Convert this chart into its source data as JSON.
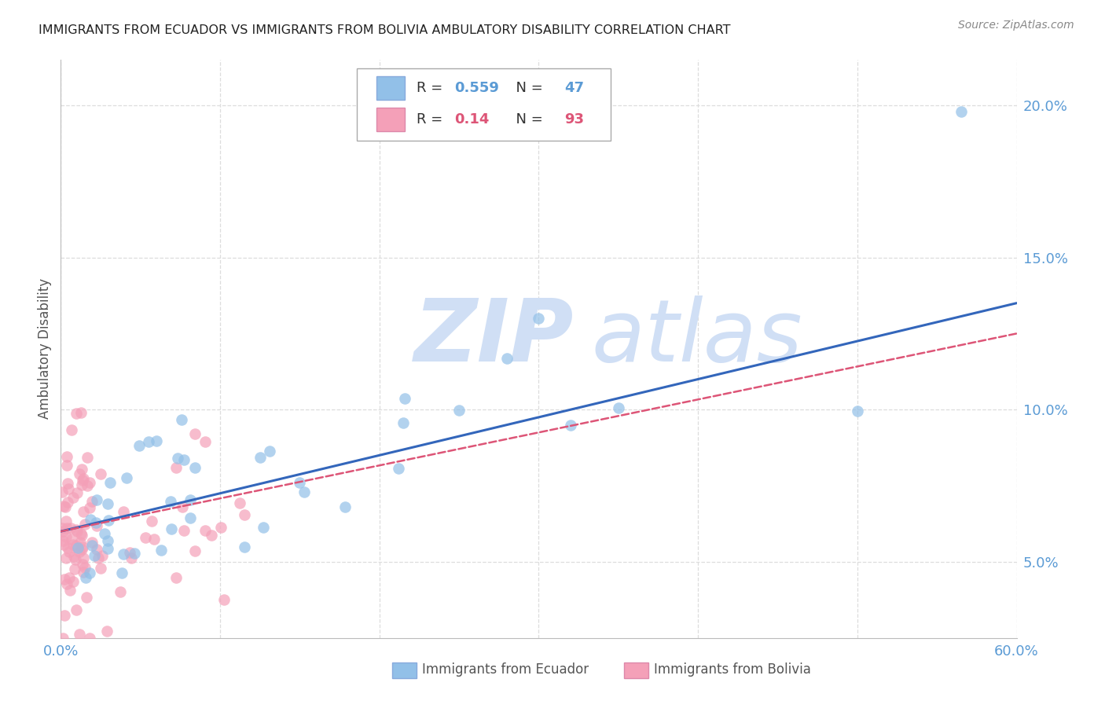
{
  "title": "IMMIGRANTS FROM ECUADOR VS IMMIGRANTS FROM BOLIVIA AMBULATORY DISABILITY CORRELATION CHART",
  "source": "Source: ZipAtlas.com",
  "ylabel": "Ambulatory Disability",
  "xlim": [
    0.0,
    0.6
  ],
  "ylim": [
    0.025,
    0.215
  ],
  "yticks": [
    0.05,
    0.1,
    0.15,
    0.2
  ],
  "xticks": [
    0.0,
    0.1,
    0.2,
    0.3,
    0.4,
    0.5,
    0.6
  ],
  "ecuador_R": 0.559,
  "ecuador_N": 47,
  "bolivia_R": 0.14,
  "bolivia_N": 93,
  "ecuador_color": "#92c0e8",
  "bolivia_color": "#f4a0b8",
  "ecuador_line_color": "#3366bb",
  "bolivia_line_color": "#dd5577",
  "background_color": "#ffffff",
  "grid_color": "#dddddd",
  "title_color": "#222222",
  "axis_tick_color": "#5b9bd5",
  "watermark_color": "#d0dff5",
  "legend_label_ecuador": "Immigrants from Ecuador",
  "legend_label_bolivia": "Immigrants from Bolivia",
  "ec_line_x0": 0.0,
  "ec_line_y0": 0.06,
  "ec_line_x1": 0.6,
  "ec_line_y1": 0.135,
  "bo_line_x0": 0.0,
  "bo_line_y0": 0.06,
  "bo_line_x1": 0.6,
  "bo_line_y1": 0.125
}
